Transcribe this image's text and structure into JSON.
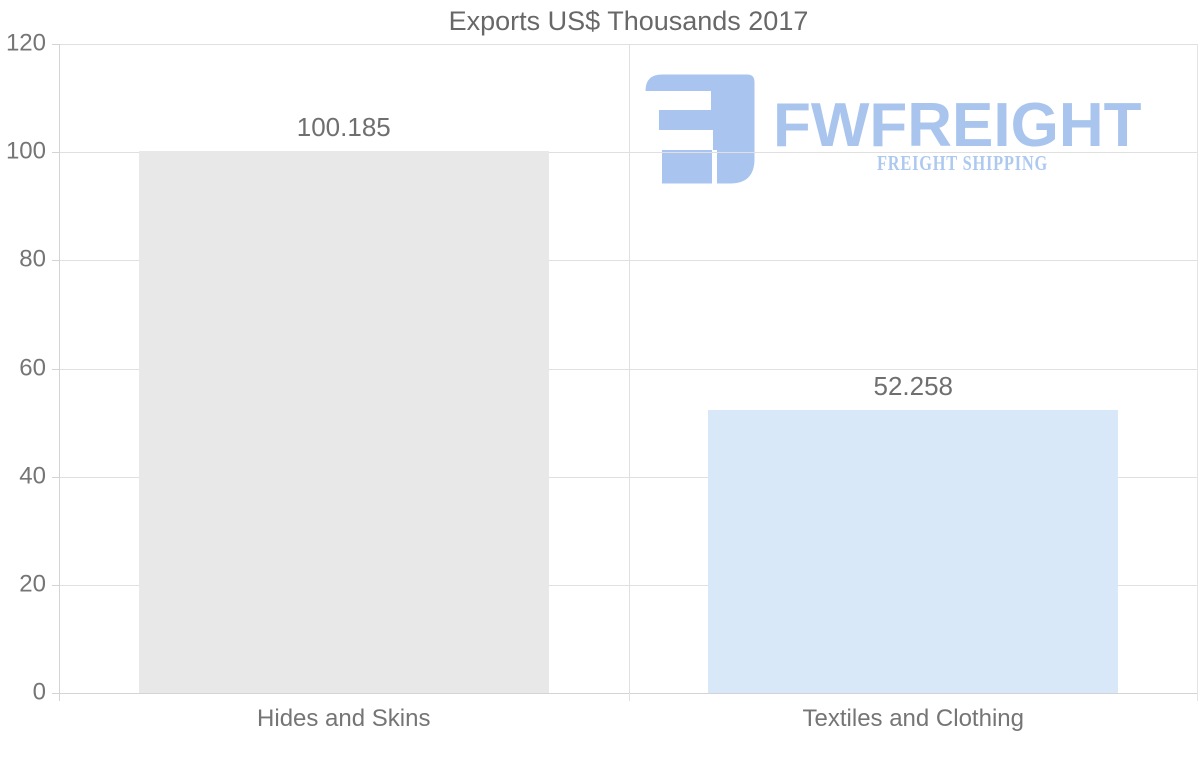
{
  "page": {
    "background": "#ffffff"
  },
  "chart_data": {
    "type": "bar",
    "title": "Exports US$ Thousands 2017",
    "categories": [
      "Hides and Skins",
      "Textiles and Clothing"
    ],
    "values": [
      100.185,
      52.258
    ],
    "value_labels": [
      "100.185",
      "52.258"
    ],
    "bar_colors": [
      "#e8e8e8",
      "#d9e8f9"
    ],
    "xlabel": "",
    "ylabel": "",
    "ylim": [
      0,
      120
    ],
    "yticks": [
      0,
      20,
      40,
      60,
      80,
      100,
      120
    ],
    "grid": true,
    "legend_position": "none",
    "grid_color": "#e0e0e0",
    "axis_color": "#d4d4d4",
    "text_color": "#757575"
  },
  "watermark": {
    "brand": "FWFREIGHT",
    "tagline": "FREIGHT SHIPPING",
    "icon": "fwfreight-logo-icon",
    "icon_color": "#a8c4ef",
    "brand_color": "#a9c5ee",
    "tagline_color": "#aec9f0"
  }
}
